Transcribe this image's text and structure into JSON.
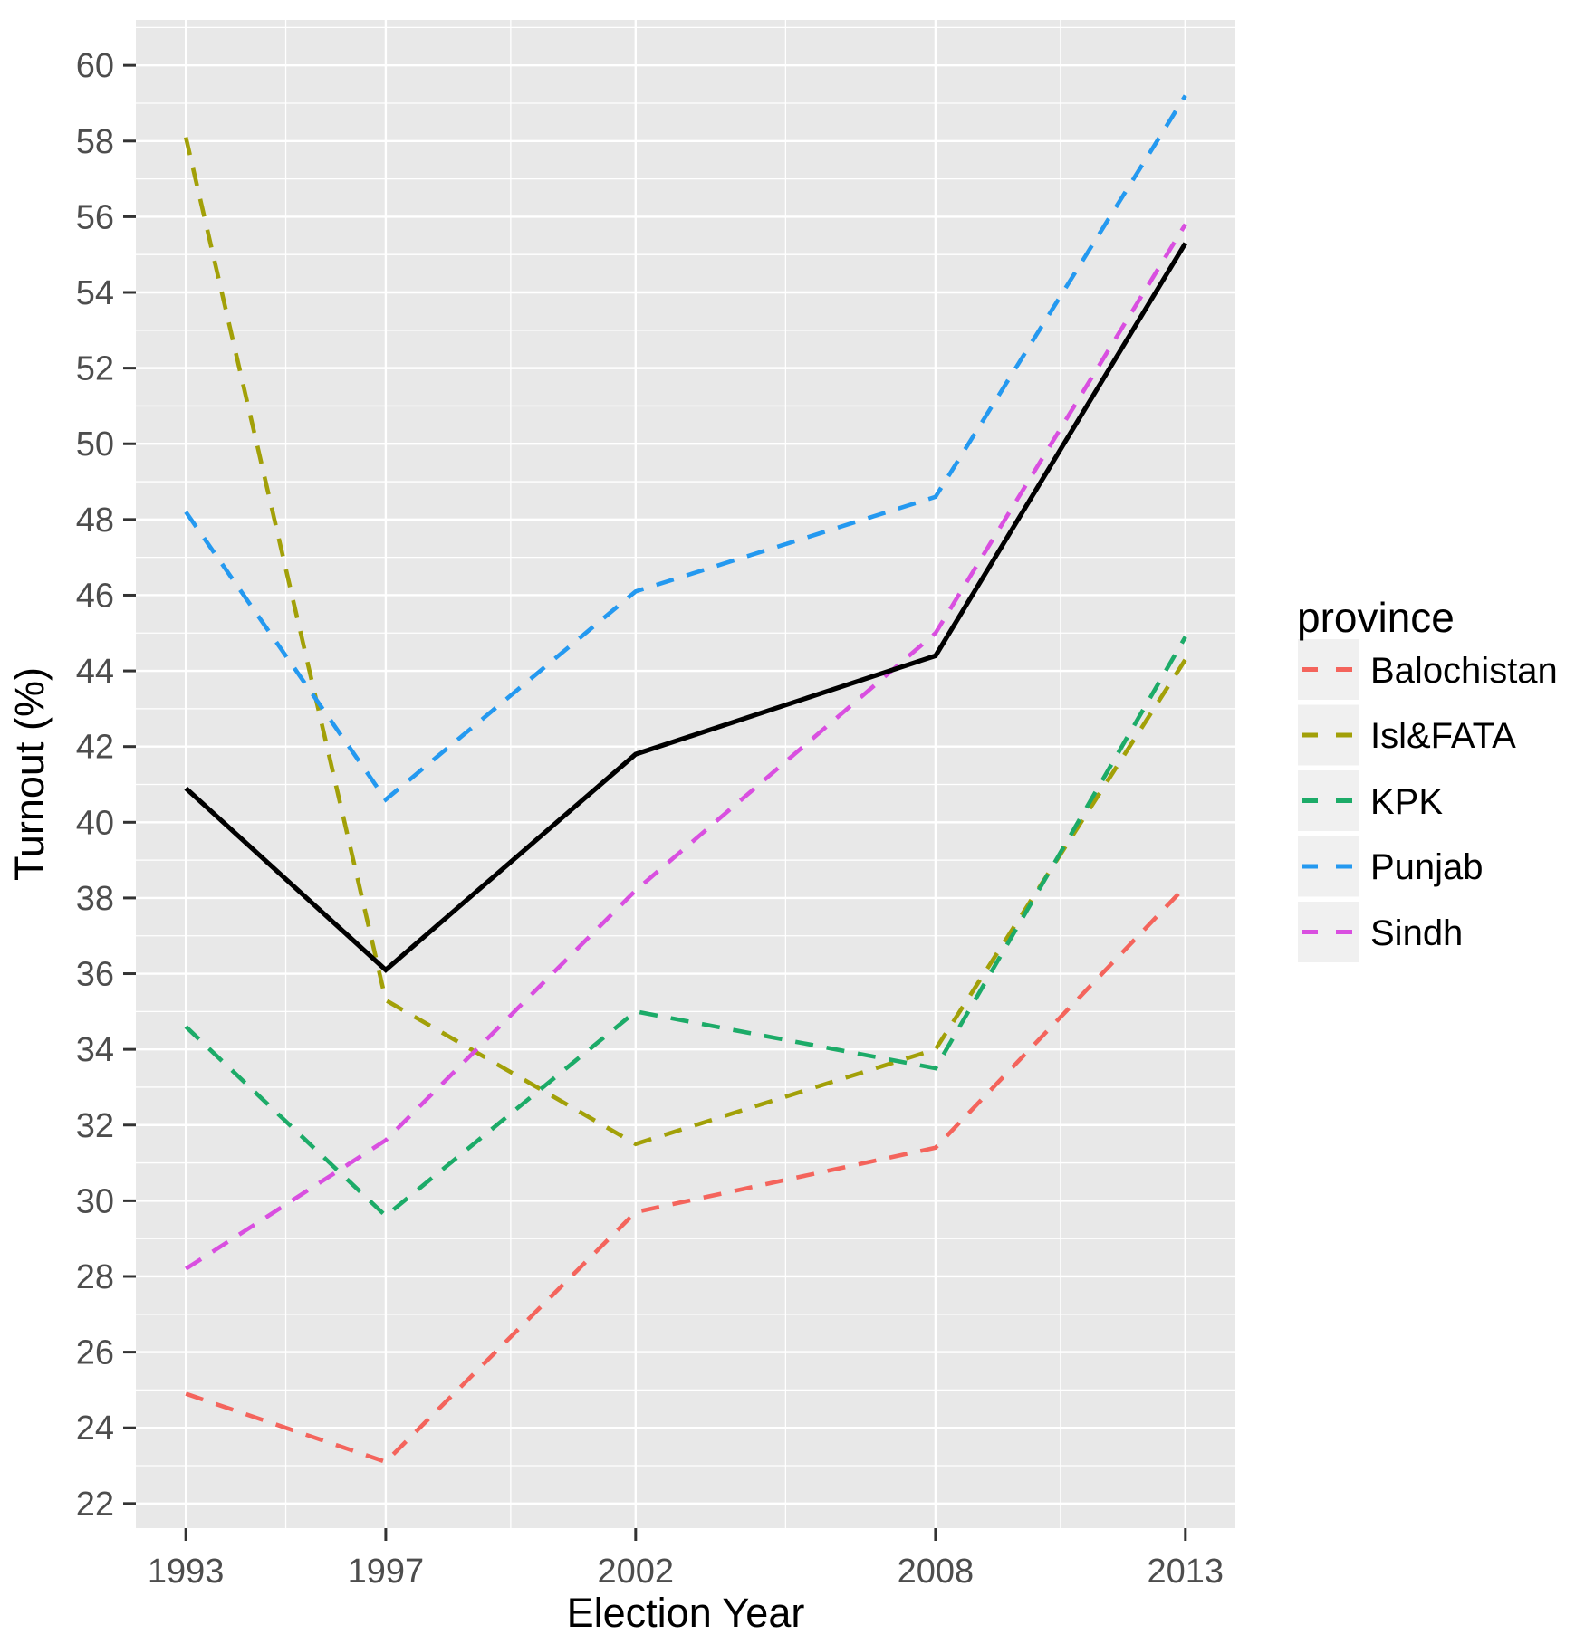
{
  "figure": {
    "background_color": "#FFFFFF",
    "panel_background_color": "#E8E8E8",
    "gridline_color": "#FFFFFF",
    "tick_color": "#333333",
    "tick_label_color": "#4D4D4D",
    "legend_key_background_color": "#F0F0F0"
  },
  "chart_data": {
    "type": "line",
    "title": "",
    "xlabel": "Election Year",
    "ylabel": "Turnout (%)",
    "x": [
      1993,
      1997,
      2002,
      2008,
      2013
    ],
    "x_tick_labels": [
      "1993",
      "1997",
      "2002",
      "2008",
      "2013"
    ],
    "y_ticks": [
      22,
      24,
      26,
      28,
      30,
      32,
      34,
      36,
      38,
      40,
      42,
      44,
      46,
      48,
      50,
      52,
      54,
      56,
      58,
      60
    ],
    "xlim": [
      1992,
      2014
    ],
    "ylim": [
      21.35,
      61.2
    ],
    "grid": "major-and-minor",
    "legend_position": "right",
    "series": [
      {
        "name": "Balochistan",
        "color": "#F4645C",
        "dashed": true,
        "in_legend": true,
        "values": [
          24.9,
          23.1,
          29.7,
          31.4,
          38.3
        ]
      },
      {
        "name": "Isl&FATA",
        "color": "#A2A008",
        "dashed": true,
        "in_legend": true,
        "values": [
          58.1,
          35.3,
          31.5,
          34.0,
          44.3
        ]
      },
      {
        "name": "KPK",
        "color": "#1CAB68",
        "dashed": true,
        "in_legend": true,
        "values": [
          34.6,
          29.6,
          35.0,
          33.5,
          44.9
        ]
      },
      {
        "name": "Punjab",
        "color": "#2499F0",
        "dashed": true,
        "in_legend": true,
        "values": [
          48.2,
          40.6,
          46.1,
          48.6,
          59.2
        ]
      },
      {
        "name": "Sindh",
        "color": "#D94FE0",
        "dashed": true,
        "in_legend": true,
        "values": [
          28.2,
          31.6,
          38.2,
          45.0,
          55.8
        ]
      },
      {
        "name": "overall-black-line",
        "color": "#000000",
        "dashed": false,
        "in_legend": false,
        "values": [
          40.9,
          36.1,
          41.8,
          44.4,
          55.3
        ]
      }
    ],
    "legend": {
      "title": "province",
      "entries": [
        {
          "label": "Balochistan",
          "color": "#F4645C"
        },
        {
          "label": "Isl&FATA",
          "color": "#A2A008"
        },
        {
          "label": "KPK",
          "color": "#1CAB68"
        },
        {
          "label": "Punjab",
          "color": "#2499F0"
        },
        {
          "label": "Sindh",
          "color": "#D94FE0"
        }
      ]
    }
  }
}
